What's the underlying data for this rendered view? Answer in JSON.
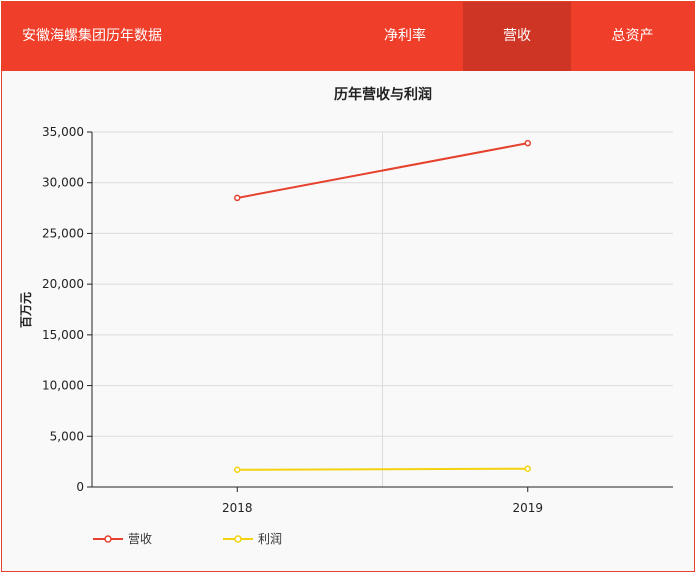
{
  "header": {
    "title": "安徽海螺集团历年数据",
    "tabs": [
      {
        "label": "净利率",
        "active": false
      },
      {
        "label": "营收",
        "active": true
      },
      {
        "label": "总资产",
        "active": false
      }
    ],
    "colors": {
      "bg": "#ef3f2b",
      "active": "#cf3524"
    }
  },
  "chart_data": {
    "type": "line",
    "title": "历年营收与利润",
    "xlabel": "",
    "ylabel": "百万元",
    "categories": [
      "2018",
      "2019"
    ],
    "ylim": [
      0,
      35000
    ],
    "yticks": [
      0,
      5000,
      10000,
      15000,
      20000,
      25000,
      30000,
      35000
    ],
    "ytick_labels": [
      "0",
      "5,000",
      "10,000",
      "15,000",
      "20,000",
      "25,000",
      "30,000",
      "35,000"
    ],
    "grid": true,
    "legend_position": "bottom-left",
    "series": [
      {
        "name": "营收",
        "values": [
          28500,
          33900
        ],
        "color": "#e5412d"
      },
      {
        "name": "利润",
        "values": [
          1700,
          1800
        ],
        "color": "#f5d20e"
      }
    ]
  }
}
